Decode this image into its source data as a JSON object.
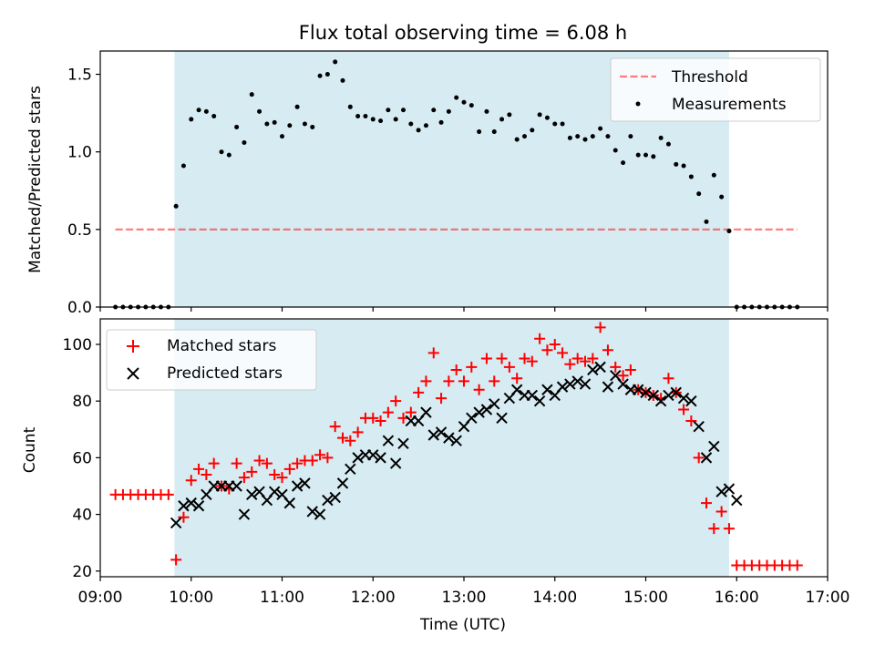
{
  "title": "Flux total observing time = 6.08 h",
  "colors": {
    "shade": "#add8e6",
    "threshold": "#ff0000",
    "measurement": "#000000",
    "matched": "#ff0000",
    "predicted": "#000000"
  },
  "chart_data": [
    {
      "type": "scatter",
      "ylabel": "Matched/Predicted stars",
      "xlim": [
        "09:00",
        "17:00"
      ],
      "ylim": [
        0,
        1.65
      ],
      "yticks": [
        "0.0",
        "0.5",
        "1.0",
        "1.5"
      ],
      "shaded_span": [
        "09:49",
        "15:55"
      ],
      "legend_position": "top-right",
      "threshold": {
        "name": "Threshold",
        "value": 0.5,
        "x_range": [
          "09:10",
          "16:40"
        ]
      },
      "series": [
        {
          "name": "Measurements",
          "x": [
            "09:10",
            "09:15",
            "09:20",
            "09:25",
            "09:30",
            "09:35",
            "09:40",
            "09:45",
            "09:50",
            "09:55",
            "10:00",
            "10:05",
            "10:10",
            "10:15",
            "10:20",
            "10:25",
            "10:30",
            "10:35",
            "10:40",
            "10:45",
            "10:50",
            "10:55",
            "11:00",
            "11:05",
            "11:10",
            "11:15",
            "11:20",
            "11:25",
            "11:30",
            "11:35",
            "11:40",
            "11:45",
            "11:50",
            "11:55",
            "12:00",
            "12:05",
            "12:10",
            "12:15",
            "12:20",
            "12:25",
            "12:30",
            "12:35",
            "12:40",
            "12:45",
            "12:50",
            "12:55",
            "13:00",
            "13:05",
            "13:10",
            "13:15",
            "13:20",
            "13:25",
            "13:30",
            "13:35",
            "13:40",
            "13:45",
            "13:50",
            "13:55",
            "14:00",
            "14:05",
            "14:10",
            "14:15",
            "14:20",
            "14:25",
            "14:30",
            "14:35",
            "14:40",
            "14:45",
            "14:50",
            "14:55",
            "15:00",
            "15:05",
            "15:10",
            "15:15",
            "15:20",
            "15:25",
            "15:30",
            "15:35",
            "15:40",
            "15:45",
            "15:50",
            "15:55",
            "16:00",
            "16:05",
            "16:10",
            "16:15",
            "16:20",
            "16:25",
            "16:30",
            "16:35",
            "16:40"
          ],
          "y": [
            0,
            0,
            0,
            0,
            0,
            0,
            0,
            0,
            0.65,
            0.91,
            1.21,
            1.27,
            1.26,
            1.23,
            1.0,
            0.98,
            1.16,
            1.06,
            1.37,
            1.26,
            1.18,
            1.19,
            1.1,
            1.17,
            1.29,
            1.18,
            1.16,
            1.49,
            1.5,
            1.58,
            1.46,
            1.29,
            1.23,
            1.23,
            1.21,
            1.2,
            1.27,
            1.21,
            1.27,
            1.18,
            1.14,
            1.17,
            1.27,
            1.19,
            1.26,
            1.35,
            1.32,
            1.3,
            1.13,
            1.26,
            1.13,
            1.21,
            1.24,
            1.08,
            1.1,
            1.14,
            1.24,
            1.22,
            1.18,
            1.18,
            1.09,
            1.1,
            1.08,
            1.1,
            1.15,
            1.1,
            1.01,
            0.93,
            1.1,
            0.98,
            0.98,
            0.97,
            1.09,
            1.05,
            0.92,
            0.91,
            0.84,
            0.73,
            0.55,
            0.85,
            0.71,
            0.49,
            0,
            0,
            0,
            0,
            0,
            0,
            0,
            0,
            0
          ]
        }
      ]
    },
    {
      "type": "scatter",
      "xlabel": "Time (UTC)",
      "ylabel": "Count",
      "xlim": [
        "09:00",
        "17:00"
      ],
      "ylim": [
        18,
        109
      ],
      "xticks": [
        "09:00",
        "10:00",
        "11:00",
        "12:00",
        "13:00",
        "14:00",
        "15:00",
        "16:00",
        "17:00"
      ],
      "yticks": [
        "20",
        "40",
        "60",
        "80",
        "100"
      ],
      "shaded_span": [
        "09:49",
        "15:55"
      ],
      "legend_position": "top-left",
      "series": [
        {
          "name": "Matched stars",
          "marker": "+",
          "x": [
            "09:10",
            "09:15",
            "09:20",
            "09:25",
            "09:30",
            "09:35",
            "09:40",
            "09:45",
            "09:50",
            "09:55",
            "10:00",
            "10:05",
            "10:10",
            "10:15",
            "10:20",
            "10:25",
            "10:30",
            "10:35",
            "10:40",
            "10:45",
            "10:50",
            "10:55",
            "11:00",
            "11:05",
            "11:10",
            "11:15",
            "11:20",
            "11:25",
            "11:30",
            "11:35",
            "11:40",
            "11:45",
            "11:50",
            "11:55",
            "12:00",
            "12:05",
            "12:10",
            "12:15",
            "12:20",
            "12:25",
            "12:30",
            "12:35",
            "12:40",
            "12:45",
            "12:50",
            "12:55",
            "13:00",
            "13:05",
            "13:10",
            "13:15",
            "13:20",
            "13:25",
            "13:30",
            "13:35",
            "13:40",
            "13:45",
            "13:50",
            "13:55",
            "14:00",
            "14:05",
            "14:10",
            "14:15",
            "14:20",
            "14:25",
            "14:30",
            "14:35",
            "14:40",
            "14:45",
            "14:50",
            "14:55",
            "15:00",
            "15:05",
            "15:10",
            "15:15",
            "15:20",
            "15:25",
            "15:30",
            "15:35",
            "15:40",
            "15:45",
            "15:50",
            "15:55",
            "16:00",
            "16:05",
            "16:10",
            "16:15",
            "16:20",
            "16:25",
            "16:30",
            "16:35",
            "16:40"
          ],
          "y": [
            47,
            47,
            47,
            47,
            47,
            47,
            47,
            47,
            24,
            39,
            52,
            56,
            54,
            58,
            50,
            49,
            58,
            53,
            55,
            59,
            58,
            54,
            53,
            56,
            58,
            59,
            59,
            61,
            60,
            71,
            67,
            66,
            69,
            74,
            74,
            73,
            76,
            80,
            74,
            76,
            83,
            87,
            97,
            81,
            87,
            91,
            87,
            92,
            84,
            95,
            87,
            95,
            92,
            88,
            95,
            94,
            102,
            98,
            100,
            97,
            93,
            95,
            94,
            95,
            106,
            98,
            92,
            89,
            91,
            84,
            83,
            82,
            81,
            88,
            83,
            77,
            73,
            60,
            44,
            35,
            41,
            35,
            22,
            22,
            22,
            22,
            22,
            22,
            22,
            22,
            22
          ]
        },
        {
          "name": "Predicted stars",
          "marker": "x",
          "x": [
            "09:50",
            "09:55",
            "10:00",
            "10:05",
            "10:10",
            "10:15",
            "10:20",
            "10:25",
            "10:30",
            "10:35",
            "10:40",
            "10:45",
            "10:50",
            "10:55",
            "11:00",
            "11:05",
            "11:10",
            "11:15",
            "11:20",
            "11:25",
            "11:30",
            "11:35",
            "11:40",
            "11:45",
            "11:50",
            "11:55",
            "12:00",
            "12:05",
            "12:10",
            "12:15",
            "12:20",
            "12:25",
            "12:30",
            "12:35",
            "12:40",
            "12:45",
            "12:50",
            "12:55",
            "13:00",
            "13:05",
            "13:10",
            "13:15",
            "13:20",
            "13:25",
            "13:30",
            "13:35",
            "13:40",
            "13:45",
            "13:50",
            "13:55",
            "14:00",
            "14:05",
            "14:10",
            "14:15",
            "14:20",
            "14:25",
            "14:30",
            "14:35",
            "14:40",
            "14:45",
            "14:50",
            "14:55",
            "15:00",
            "15:05",
            "15:10",
            "15:15",
            "15:20",
            "15:25",
            "15:30",
            "15:35",
            "15:40",
            "15:45",
            "15:50",
            "15:55",
            "16:00"
          ],
          "y": [
            37,
            43,
            44,
            43,
            47,
            50,
            50,
            50,
            50,
            40,
            47,
            48,
            45,
            48,
            47,
            44,
            50,
            51,
            41,
            40,
            45,
            46,
            51,
            56,
            60,
            61,
            61,
            60,
            66,
            58,
            65,
            73,
            73,
            76,
            68,
            69,
            67,
            66,
            71,
            74,
            76,
            77,
            79,
            74,
            81,
            84,
            82,
            82,
            80,
            84,
            82,
            85,
            86,
            87,
            86,
            91,
            92,
            85,
            89,
            86,
            84,
            84,
            83,
            82,
            80,
            82,
            83,
            81,
            80,
            71,
            60,
            64,
            48,
            49,
            45
          ]
        }
      ]
    }
  ]
}
